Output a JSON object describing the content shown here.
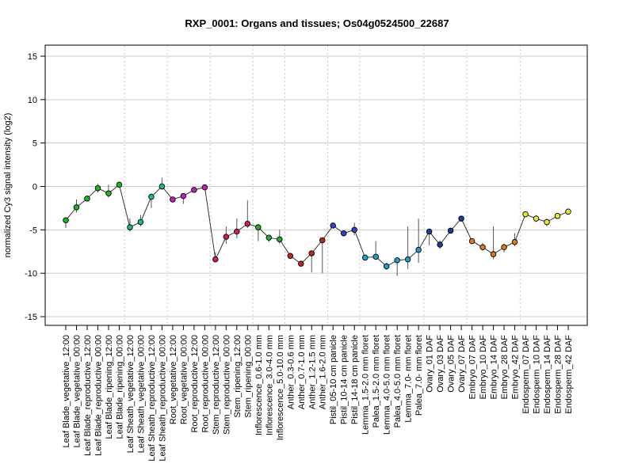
{
  "chart_data": {
    "type": "line",
    "title": "RXP_0001: Organs and tissues; Os04g0524500_22687",
    "xlabel": "",
    "ylabel": "normalized Cy3 signal intensity (log2)",
    "ylim": [
      -16,
      16
    ],
    "yticks": [
      -15,
      -10,
      -5,
      0,
      5,
      10,
      15
    ],
    "grid": "horizontal at y ticks; dotted vertical separators between groups",
    "legend": "none",
    "series": [
      {
        "points": [
          {
            "label": "Leaf Blade_vegetative_12:00",
            "value": -3.9,
            "err_low": -4.8,
            "err_high": -3.6,
            "color": "#1fb51f"
          },
          {
            "label": "Leaf Blade_vegetative_00:00",
            "value": -2.4,
            "err_low": -3.0,
            "err_high": -1.5,
            "color": "#1fb51f"
          },
          {
            "label": "Leaf Blade_reproductive_12:00",
            "value": -1.4,
            "err_low": -1.7,
            "err_high": -1.1,
            "color": "#1fb51f"
          },
          {
            "label": "Leaf Blade_reproductive_00:00",
            "value": -0.2,
            "err_low": -0.7,
            "err_high": 0.3,
            "color": "#1fb51f"
          },
          {
            "label": "Leaf Blade_ripening_12:00",
            "value": -0.8,
            "err_low": -1.3,
            "err_high": 0.2,
            "color": "#1fb51f"
          },
          {
            "label": "Leaf Blade_ripening_00:00",
            "value": 0.2,
            "err_low": 0.0,
            "err_high": 0.4,
            "color": "#1fb51f"
          },
          {
            "label": "Leaf Sheath_vegetative_12:00",
            "value": -4.7,
            "err_low": -5.2,
            "err_high": -3.7,
            "color": "#16c08a"
          },
          {
            "label": "Leaf Sheath_vegetative_00:00",
            "value": -4.1,
            "err_low": -4.6,
            "err_high": -3.3,
            "color": "#16c08a"
          },
          {
            "label": "Leaf Sheath_reproductive_12:00",
            "value": -1.2,
            "err_low": -2.5,
            "err_high": -0.8,
            "color": "#16c08a"
          },
          {
            "label": "Leaf Sheath_reproductive_00:00",
            "value": 0.0,
            "err_low": -0.4,
            "err_high": 1.0,
            "color": "#16c08a"
          },
          {
            "label": "Root_vegetative_12:00",
            "value": -1.5,
            "err_low": -1.8,
            "err_high": -1.2,
            "color": "#c41fbd"
          },
          {
            "label": "Root_vegetative_00:00",
            "value": -1.1,
            "err_low": -2.0,
            "err_high": -0.8,
            "color": "#c41fbd"
          },
          {
            "label": "Root_reproductive_12:00",
            "value": -0.4,
            "err_low": -0.7,
            "err_high": -0.1,
            "color": "#c41fbd"
          },
          {
            "label": "Root_reproductive_00:00",
            "value": -0.1,
            "err_low": -0.3,
            "err_high": 0.1,
            "color": "#c41fbd"
          },
          {
            "label": "Stem_reproductive_12:00",
            "value": -8.4,
            "err_low": -8.7,
            "err_high": -7.6,
            "color": "#d61a6c"
          },
          {
            "label": "Stem_reproductive_00:00",
            "value": -5.8,
            "err_low": -6.6,
            "err_high": -4.6,
            "color": "#d61a6c"
          },
          {
            "label": "Stem_ripening_12:00",
            "value": -5.2,
            "err_low": -6.0,
            "err_high": -3.7,
            "color": "#d61a6c"
          },
          {
            "label": "Stem_ripening_00:00",
            "value": -4.3,
            "err_low": -4.8,
            "err_high": -1.6,
            "color": "#d61a6c"
          },
          {
            "label": "Inflorescence_0.6-1.0 mm",
            "value": -4.7,
            "err_low": -6.3,
            "err_high": -4.5,
            "color": "#22b022"
          },
          {
            "label": "Inflorescence_3.0-4.0 mm",
            "value": -5.9,
            "err_low": -6.4,
            "err_high": -5.6,
            "color": "#22b022"
          },
          {
            "label": "Inflorescence_5.0-10.0 mm",
            "value": -6.1,
            "err_low": -6.6,
            "err_high": -5.0,
            "color": "#22b022"
          },
          {
            "label": "Anther_0.3-0.6 mm",
            "value": -8.0,
            "err_low": -8.2,
            "err_high": -7.7,
            "color": "#c0271e"
          },
          {
            "label": "Anther_0.7-1.0 mm",
            "value": -8.9,
            "err_low": -9.1,
            "err_high": -8.7,
            "color": "#c0271e"
          },
          {
            "label": "Anther_1.2-1.5 mm",
            "value": -7.7,
            "err_low": -9.9,
            "err_high": -7.4,
            "color": "#c0271e"
          },
          {
            "label": "Anther_1.6-2.0 mm",
            "value": -6.2,
            "err_low": -10.0,
            "err_high": -5.9,
            "color": "#c0271e"
          },
          {
            "label": "Pistil_05-10 cm panicle",
            "value": -4.5,
            "err_low": -4.8,
            "err_high": -4.2,
            "color": "#3a3fcf"
          },
          {
            "label": "Pistil_10-14 cm panicle",
            "value": -5.4,
            "err_low": -5.7,
            "err_high": -5.1,
            "color": "#3a3fcf"
          },
          {
            "label": "Pistil_14-18 cm panicle",
            "value": -5.0,
            "err_low": -5.6,
            "err_high": -4.2,
            "color": "#3a3fcf"
          },
          {
            "label": "Lemma_1.5-2.0 mm floret",
            "value": -8.2,
            "err_low": -8.5,
            "err_high": -7.9,
            "color": "#1aa3c4"
          },
          {
            "label": "Palea_1.5-2.0 mm floret",
            "value": -8.1,
            "err_low": -8.4,
            "err_high": -6.3,
            "color": "#1aa3c4"
          },
          {
            "label": "Lemma_4.0-5.0 mm floret",
            "value": -9.2,
            "err_low": -9.6,
            "err_high": -8.8,
            "color": "#1aa3c4"
          },
          {
            "label": "Palea_4.0-5.0 mm floret",
            "value": -8.5,
            "err_low": -10.3,
            "err_high": -8.2,
            "color": "#1aa3c4"
          },
          {
            "label": "Lemma_7.0- mm floret",
            "value": -8.4,
            "err_low": -9.5,
            "err_high": -4.6,
            "color": "#1aa3c4"
          },
          {
            "label": "Palea_7.0- mm floret",
            "value": -7.3,
            "err_low": -8.8,
            "err_high": -3.7,
            "color": "#1aa3c4"
          },
          {
            "label": "Ovary_01 DAF",
            "value": -5.2,
            "err_low": -6.8,
            "err_high": -5.0,
            "color": "#1a3f99"
          },
          {
            "label": "Ovary_03 DAF",
            "value": -6.7,
            "err_low": -7.2,
            "err_high": -6.2,
            "color": "#1a3f99"
          },
          {
            "label": "Ovary_05 DAF",
            "value": -5.1,
            "err_low": -5.4,
            "err_high": -4.8,
            "color": "#1a3f99"
          },
          {
            "label": "Ovary_07 DAF",
            "value": -3.7,
            "err_low": -4.0,
            "err_high": -3.4,
            "color": "#1a3f99"
          },
          {
            "label": "Embryo_07 DAF",
            "value": -6.3,
            "err_low": -6.6,
            "err_high": -6.0,
            "color": "#e07a1c"
          },
          {
            "label": "Embryo_10 DAF",
            "value": -7.0,
            "err_low": -7.4,
            "err_high": -6.5,
            "color": "#e07a1c"
          },
          {
            "label": "Embryo_14 DAF",
            "value": -7.8,
            "err_low": -8.4,
            "err_high": -4.6,
            "color": "#e07a1c"
          },
          {
            "label": "Embryo_28 DAF",
            "value": -7.0,
            "err_low": -7.6,
            "err_high": -6.6,
            "color": "#e07a1c"
          },
          {
            "label": "Embryo_42 DAF",
            "value": -6.4,
            "err_low": -6.9,
            "err_high": -5.4,
            "color": "#e07a1c"
          },
          {
            "label": "Endosperm_07 DAF",
            "value": -3.2,
            "err_low": -3.4,
            "err_high": -3.0,
            "color": "#e6ea2a"
          },
          {
            "label": "Endosperm_10 DAF",
            "value": -3.7,
            "err_low": -4.1,
            "err_high": -3.3,
            "color": "#e6ea2a"
          },
          {
            "label": "Endosperm_14 DAF",
            "value": -4.1,
            "err_low": -4.6,
            "err_high": -3.7,
            "color": "#e6ea2a"
          },
          {
            "label": "Endosperm_28 DAF",
            "value": -3.4,
            "err_low": -3.7,
            "err_high": -3.1,
            "color": "#e6ea2a"
          },
          {
            "label": "Endosperm_42 DAF",
            "value": -2.9,
            "err_low": -3.1,
            "err_high": -2.7,
            "color": "#e6ea2a"
          }
        ]
      }
    ]
  }
}
